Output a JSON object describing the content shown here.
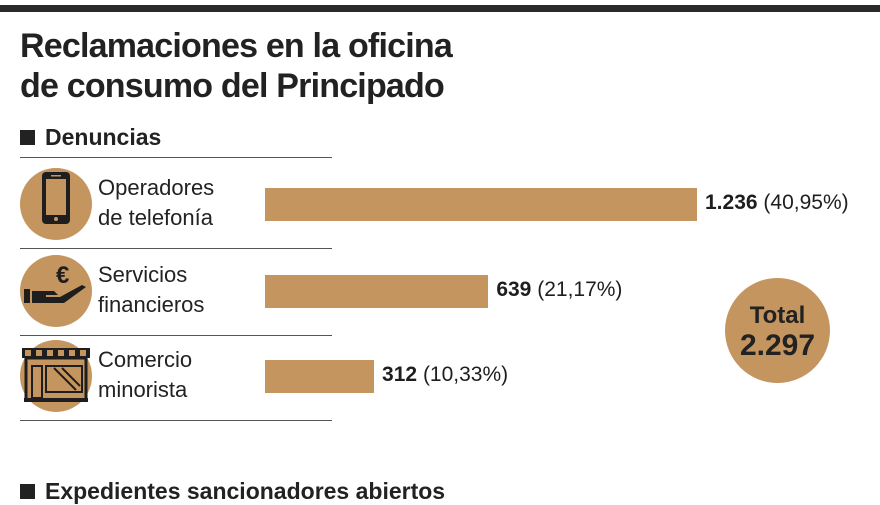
{
  "title_line1": "Reclamaciones en la oficina",
  "title_line2": "de consumo del Principado",
  "sections": [
    "Denuncias",
    "Expedientes sancionadores abiertos"
  ],
  "colors": {
    "bar": "#c4955f",
    "text": "#222222"
  },
  "chart_data": {
    "type": "bar",
    "orientation": "horizontal",
    "title": "Denuncias",
    "categories": [
      {
        "line1": "Operadores",
        "line2": "de telefonía",
        "icon": "smartphone-icon"
      },
      {
        "line1": "Servicios",
        "line2": "financieros",
        "icon": "euro-hand-icon"
      },
      {
        "line1": "Comercio",
        "line2": "minorista",
        "icon": "shop-icon"
      }
    ],
    "values": [
      1236,
      639,
      312
    ],
    "value_labels": [
      "1.236",
      "639",
      "312"
    ],
    "percent_labels": [
      "(40,95%)",
      "(21,17%)",
      "(10,33%)"
    ],
    "total_label": "Total",
    "total_value": "2.297"
  }
}
